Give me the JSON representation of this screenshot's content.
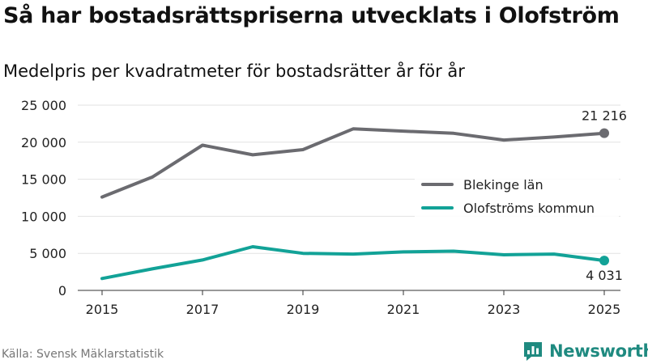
{
  "header": {
    "title": "Så har bostadsrättspriserna utvecklats i Olofström",
    "subtitle": "Medelpris per kvadratmeter för bostadsrätter år för år"
  },
  "chart_data": {
    "type": "line",
    "title": "Så har bostadsrättspriserna utvecklats i Olofström",
    "subtitle": "Medelpris per kvadratmeter för bostadsrätter år för år",
    "xlabel": "",
    "ylabel": "",
    "x": [
      2015,
      2016,
      2017,
      2018,
      2019,
      2020,
      2021,
      2022,
      2023,
      2024,
      2025
    ],
    "xlim": [
      2015,
      2025
    ],
    "ylim": [
      0,
      25000
    ],
    "x_ticks": [
      2015,
      2017,
      2019,
      2021,
      2023,
      2025
    ],
    "x_tick_labels": [
      "2015",
      "2017",
      "2019",
      "2021",
      "2023",
      "2025"
    ],
    "y_ticks": [
      0,
      5000,
      10000,
      15000,
      20000,
      25000
    ],
    "y_tick_labels": [
      "0",
      "5 000",
      "10 000",
      "15 000",
      "20 000",
      "25 000"
    ],
    "grid": true,
    "legend_position": "right",
    "series": [
      {
        "name": "Blekinge län",
        "color": "#6b6b70",
        "values": [
          12600,
          15300,
          19600,
          18300,
          19000,
          21800,
          21500,
          21200,
          20300,
          20700,
          21216
        ],
        "end_label": "21 216"
      },
      {
        "name": "Olofströms kommun",
        "color": "#12a297",
        "values": [
          1600,
          2900,
          4100,
          5900,
          5000,
          4900,
          5200,
          5300,
          4800,
          4900,
          4031
        ],
        "end_label": "4 031"
      }
    ]
  },
  "footer": {
    "source": "Källa: Svensk Mäklarstatistik",
    "brand": "Newsworthy",
    "brand_color": "#1f8a80"
  }
}
